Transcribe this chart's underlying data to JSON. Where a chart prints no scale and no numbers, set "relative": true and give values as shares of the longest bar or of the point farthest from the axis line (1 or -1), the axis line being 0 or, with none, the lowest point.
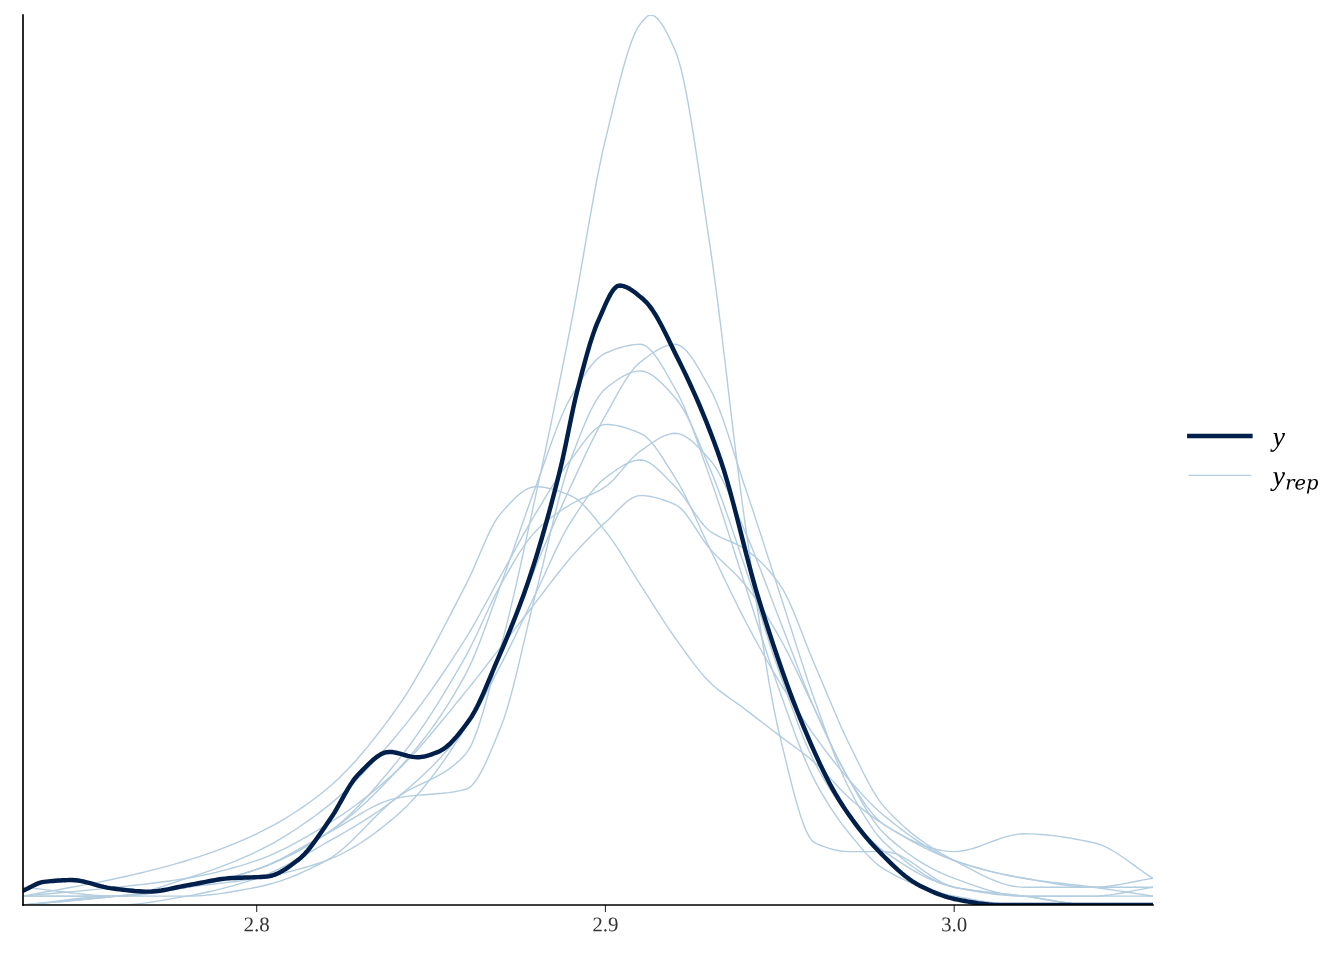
{
  "chart_data": {
    "type": "line",
    "relative": true,
    "tick_labels": "x",
    "grid": false,
    "legend": "right",
    "marker": "none",
    "line_style": "solid",
    "xlim": [
      2.733,
      3.057
    ],
    "xticks": [
      2.8,
      2.9,
      {
        "value": 3,
        "label": "3.0"
      }
    ],
    "x": [
      2.733,
      2.76,
      2.78,
      2.8,
      2.82,
      2.84,
      2.86,
      2.87,
      2.88,
      2.89,
      2.9,
      2.91,
      2.92,
      2.93,
      2.94,
      2.95,
      2.96,
      2.97,
      2.98,
      3.0,
      3.02,
      3.04,
      3.057
    ],
    "series": [
      {
        "name": "y$_{rep}$",
        "color": "#b3cde0",
        "x": [
          2.733,
          2.76,
          2.78,
          2.8,
          2.82,
          2.84,
          2.86,
          2.87,
          2.88,
          2.89,
          2.9,
          2.91,
          2.913,
          2.92,
          2.93,
          2.94,
          2.95,
          2.96,
          2.97,
          2.98,
          3.0,
          3.02,
          3.04,
          3.057
        ],
        "values": [
          0.0,
          0.01,
          0.01,
          0.02,
          0.05,
          0.12,
          0.17,
          0.29,
          0.46,
          0.65,
          0.86,
          0.99,
          1.0,
          0.96,
          0.74,
          0.43,
          0.19,
          0.07,
          0.06,
          0.06,
          0.02,
          0.01,
          0.01,
          0.01
        ]
      },
      {
        "color": "#b3cde0",
        "values": [
          0.01,
          0.03,
          0.05,
          0.08,
          0.13,
          0.22,
          0.36,
          0.44,
          0.47,
          0.46,
          0.42,
          0.36,
          0.3,
          0.25,
          0.22,
          0.19,
          0.16,
          0.12,
          0.09,
          0.05,
          0.03,
          0.02,
          0.01
        ]
      },
      {
        "color": "#b3cde0",
        "values": [
          0.0,
          0.01,
          0.02,
          0.04,
          0.08,
          0.15,
          0.26,
          0.36,
          0.47,
          0.57,
          0.62,
          0.63,
          0.58,
          0.48,
          0.36,
          0.24,
          0.14,
          0.08,
          0.04,
          0.01,
          0.0,
          0.0,
          0.0
        ]
      },
      {
        "color": "#b3cde0",
        "values": [
          0.01,
          0.01,
          0.02,
          0.03,
          0.05,
          0.1,
          0.2,
          0.28,
          0.38,
          0.47,
          0.55,
          0.61,
          0.63,
          0.58,
          0.47,
          0.35,
          0.23,
          0.13,
          0.07,
          0.02,
          0.01,
          0.0,
          0.0
        ]
      },
      {
        "color": "#b3cde0",
        "values": [
          0.01,
          0.01,
          0.03,
          0.06,
          0.11,
          0.19,
          0.3,
          0.37,
          0.44,
          0.5,
          0.54,
          0.53,
          0.48,
          0.4,
          0.32,
          0.25,
          0.19,
          0.14,
          0.1,
          0.05,
          0.03,
          0.02,
          0.02
        ]
      },
      {
        "color": "#b3cde0",
        "values": [
          0.0,
          0.01,
          0.02,
          0.04,
          0.08,
          0.16,
          0.28,
          0.36,
          0.42,
          0.45,
          0.47,
          0.51,
          0.53,
          0.5,
          0.42,
          0.32,
          0.22,
          0.14,
          0.08,
          0.03,
          0.01,
          0.01,
          0.02
        ]
      },
      {
        "color": "#b3cde0",
        "values": [
          0.01,
          0.02,
          0.03,
          0.05,
          0.09,
          0.15,
          0.24,
          0.29,
          0.34,
          0.39,
          0.43,
          0.46,
          0.45,
          0.4,
          0.36,
          0.3,
          0.22,
          0.14,
          0.09,
          0.06,
          0.08,
          0.07,
          0.03
        ]
      },
      {
        "color": "#b3cde0",
        "values": [
          0.0,
          0.0,
          0.01,
          0.03,
          0.07,
          0.12,
          0.2,
          0.27,
          0.35,
          0.43,
          0.48,
          0.5,
          0.47,
          0.42,
          0.4,
          0.36,
          0.27,
          0.18,
          0.11,
          0.05,
          0.02,
          0.02,
          0.03
        ]
      },
      {
        "color": "#b3cde0",
        "values": [
          0.02,
          0.01,
          0.02,
          0.04,
          0.08,
          0.12,
          0.13,
          0.2,
          0.35,
          0.5,
          0.58,
          0.6,
          0.57,
          0.49,
          0.38,
          0.26,
          0.16,
          0.1,
          0.06,
          0.02,
          0.01,
          0.0,
          0.0
        ]
      },
      {
        "name": "y",
        "color": "#011f4b",
        "x": [
          2.733,
          2.739,
          2.747,
          2.758,
          2.769,
          2.78,
          2.792,
          2.803,
          2.812,
          2.821,
          2.829,
          2.838,
          2.846,
          2.852,
          2.861,
          2.869,
          2.878,
          2.887,
          2.892,
          2.898,
          2.904,
          2.911,
          2.921,
          2.933,
          2.944,
          2.956,
          2.967,
          2.978,
          2.99,
          3.001,
          3.013,
          3.057
        ],
        "values": [
          0.016,
          0.026,
          0.028,
          0.019,
          0.015,
          0.022,
          0.03,
          0.032,
          0.051,
          0.096,
          0.146,
          0.172,
          0.166,
          0.172,
          0.208,
          0.275,
          0.365,
          0.489,
          0.579,
          0.657,
          0.696,
          0.68,
          0.612,
          0.5,
          0.343,
          0.208,
          0.118,
          0.062,
          0.022,
          0.006,
          0.0,
          0.0
        ]
      }
    ]
  }
}
